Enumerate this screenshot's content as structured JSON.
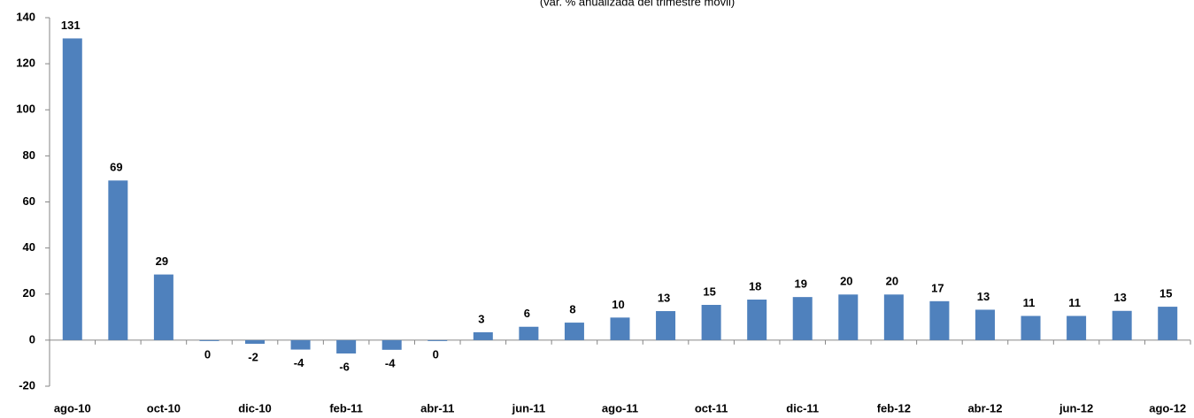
{
  "chart_data": {
    "type": "bar",
    "subtitle": "(var. % anualizada del trimestre móvil)",
    "categories": [
      "ago-10",
      null,
      "oct-10",
      null,
      "dic-10",
      null,
      "feb-11",
      null,
      "abr-11",
      null,
      "jun-11",
      null,
      "ago-11",
      null,
      "oct-11",
      null,
      "dic-11",
      null,
      "feb-12",
      null,
      "abr-12",
      null,
      "jun-12",
      null,
      "ago-12"
    ],
    "values": [
      131,
      69.3,
      28.5,
      -0.4,
      -1.6,
      -4.1,
      -5.8,
      -4.2,
      -0.4,
      3.4,
      5.8,
      7.6,
      9.8,
      12.6,
      15.3,
      17.6,
      18.7,
      19.8,
      19.8,
      16.9,
      13.2,
      10.5,
      10.5,
      12.7,
      14.5
    ],
    "value_labels": [
      "131",
      "69",
      "29",
      "0",
      "-2",
      "-4",
      "-6",
      "-4",
      "0",
      "3",
      "6",
      "8",
      "10",
      "13",
      "15",
      "18",
      "19",
      "20",
      "20",
      "17",
      "13",
      "11",
      "11",
      "13",
      "15"
    ],
    "color": "#4f81bd",
    "ylim": [
      -20,
      140
    ],
    "yticks": [
      -20,
      0,
      20,
      40,
      60,
      80,
      100,
      120,
      140
    ]
  }
}
